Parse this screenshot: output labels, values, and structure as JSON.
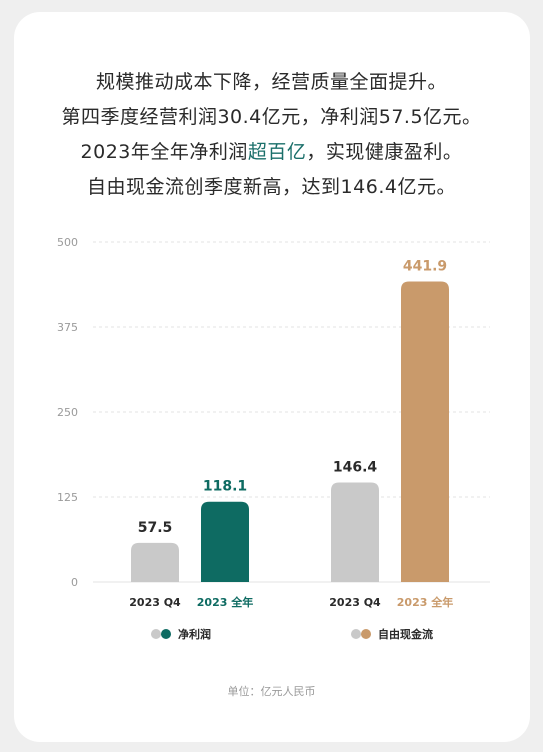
{
  "headline": {
    "line1": "规模推动成本下降，经营质量全面提升。",
    "line2": "第四季度经营利润30.4亿元，净利润57.5亿元。",
    "line3_pre": "2023年全年净利润",
    "line3_accent": "超百亿",
    "line3_post": "，实现健康盈利。",
    "line4": "自由现金流创季度新高，达到146.4亿元。"
  },
  "colors": {
    "grey_bar": "#c9c9c9",
    "net_profit": "#0e6b62",
    "free_cash_flow": "#c99a6b",
    "accent_text": "#1a6f6a",
    "grid": "#e3e3e3",
    "axis_text": "#9a9a9a"
  },
  "chart_data": {
    "type": "bar",
    "ylim": [
      0,
      500
    ],
    "yticks": [
      0,
      125,
      250,
      375,
      500
    ],
    "grid": true,
    "legend_placement": "bottom",
    "groups": [
      {
        "name": "净利润",
        "categories": [
          "2023 Q4",
          "2023 全年"
        ],
        "values": [
          57.5,
          118.1
        ],
        "labels": [
          "57.5",
          "118.1"
        ]
      },
      {
        "name": "自由现金流",
        "categories": [
          "2023 Q4",
          "2023 全年"
        ],
        "values": [
          146.4,
          441.9
        ],
        "labels": [
          "146.4",
          "441.9"
        ]
      }
    ]
  },
  "footer": {
    "unit": "单位：亿元人民币"
  }
}
